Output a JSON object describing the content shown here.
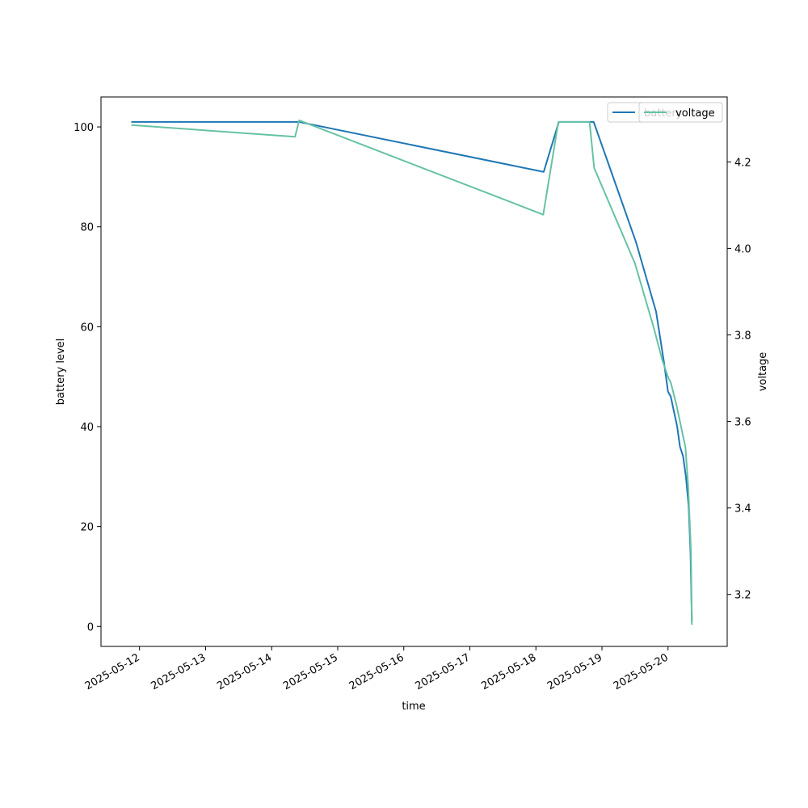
{
  "chart_data": {
    "type": "line",
    "xlabel": "time",
    "ylabel": "battery level",
    "y2label": "voltage",
    "x_ticks": [
      "2025-05-12",
      "2025-05-13",
      "2025-05-14",
      "2025-05-15",
      "2025-05-16",
      "2025-05-17",
      "2025-05-18",
      "2025-05-19",
      "2025-05-20"
    ],
    "xlim": [
      "2025-05-11T10:00",
      "2025-05-20T21:30"
    ],
    "ylim": [
      -4,
      106
    ],
    "y_ticks": [
      0,
      20,
      40,
      60,
      80,
      100
    ],
    "y2lim": [
      3.08,
      4.35
    ],
    "y2_ticks": [
      3.2,
      3.4,
      3.6,
      3.8,
      4.0,
      4.2
    ],
    "grid": false,
    "legend_position": "top-right",
    "series": [
      {
        "name": "battery",
        "axis": "left",
        "color": "#1f77b4",
        "points": [
          [
            "2025-05-11T21:00",
            101
          ],
          [
            "2025-05-14T10:00",
            101
          ],
          [
            "2025-05-18T02:50",
            91
          ],
          [
            "2025-05-18T08:20",
            101
          ],
          [
            "2025-05-18T21:00",
            101
          ],
          [
            "2025-05-19T12:20",
            77
          ],
          [
            "2025-05-19T19:40",
            63
          ],
          [
            "2025-05-19T22:30",
            53
          ],
          [
            "2025-05-20T00:00",
            47
          ],
          [
            "2025-05-20T01:00",
            46
          ],
          [
            "2025-05-20T03:20",
            40
          ],
          [
            "2025-05-20T04:20",
            36
          ],
          [
            "2025-05-20T05:30",
            34
          ],
          [
            "2025-05-20T06:30",
            30
          ],
          [
            "2025-05-20T07:30",
            24
          ],
          [
            "2025-05-20T08:10",
            15
          ],
          [
            "2025-05-20T08:40",
            1
          ]
        ]
      },
      {
        "name": "voltage",
        "axis": "right",
        "color": "#66c2a5",
        "points": [
          [
            "2025-05-11T21:00",
            4.285
          ],
          [
            "2025-05-14T08:30",
            4.258
          ],
          [
            "2025-05-14T10:00",
            4.296
          ],
          [
            "2025-05-18T02:40",
            4.078
          ],
          [
            "2025-05-18T08:10",
            4.292
          ],
          [
            "2025-05-18T19:30",
            4.292
          ],
          [
            "2025-05-18T21:10",
            4.186
          ],
          [
            "2025-05-19T12:00",
            3.965
          ],
          [
            "2025-05-19T18:40",
            3.82
          ],
          [
            "2025-05-19T22:00",
            3.74
          ],
          [
            "2025-05-20T00:10",
            3.7
          ],
          [
            "2025-05-20T01:00",
            3.69
          ],
          [
            "2025-05-20T03:00",
            3.64
          ],
          [
            "2025-05-20T06:20",
            3.54
          ],
          [
            "2025-05-20T07:20",
            3.45
          ],
          [
            "2025-05-20T08:20",
            3.3
          ],
          [
            "2025-05-20T08:40",
            3.13
          ]
        ]
      }
    ]
  }
}
